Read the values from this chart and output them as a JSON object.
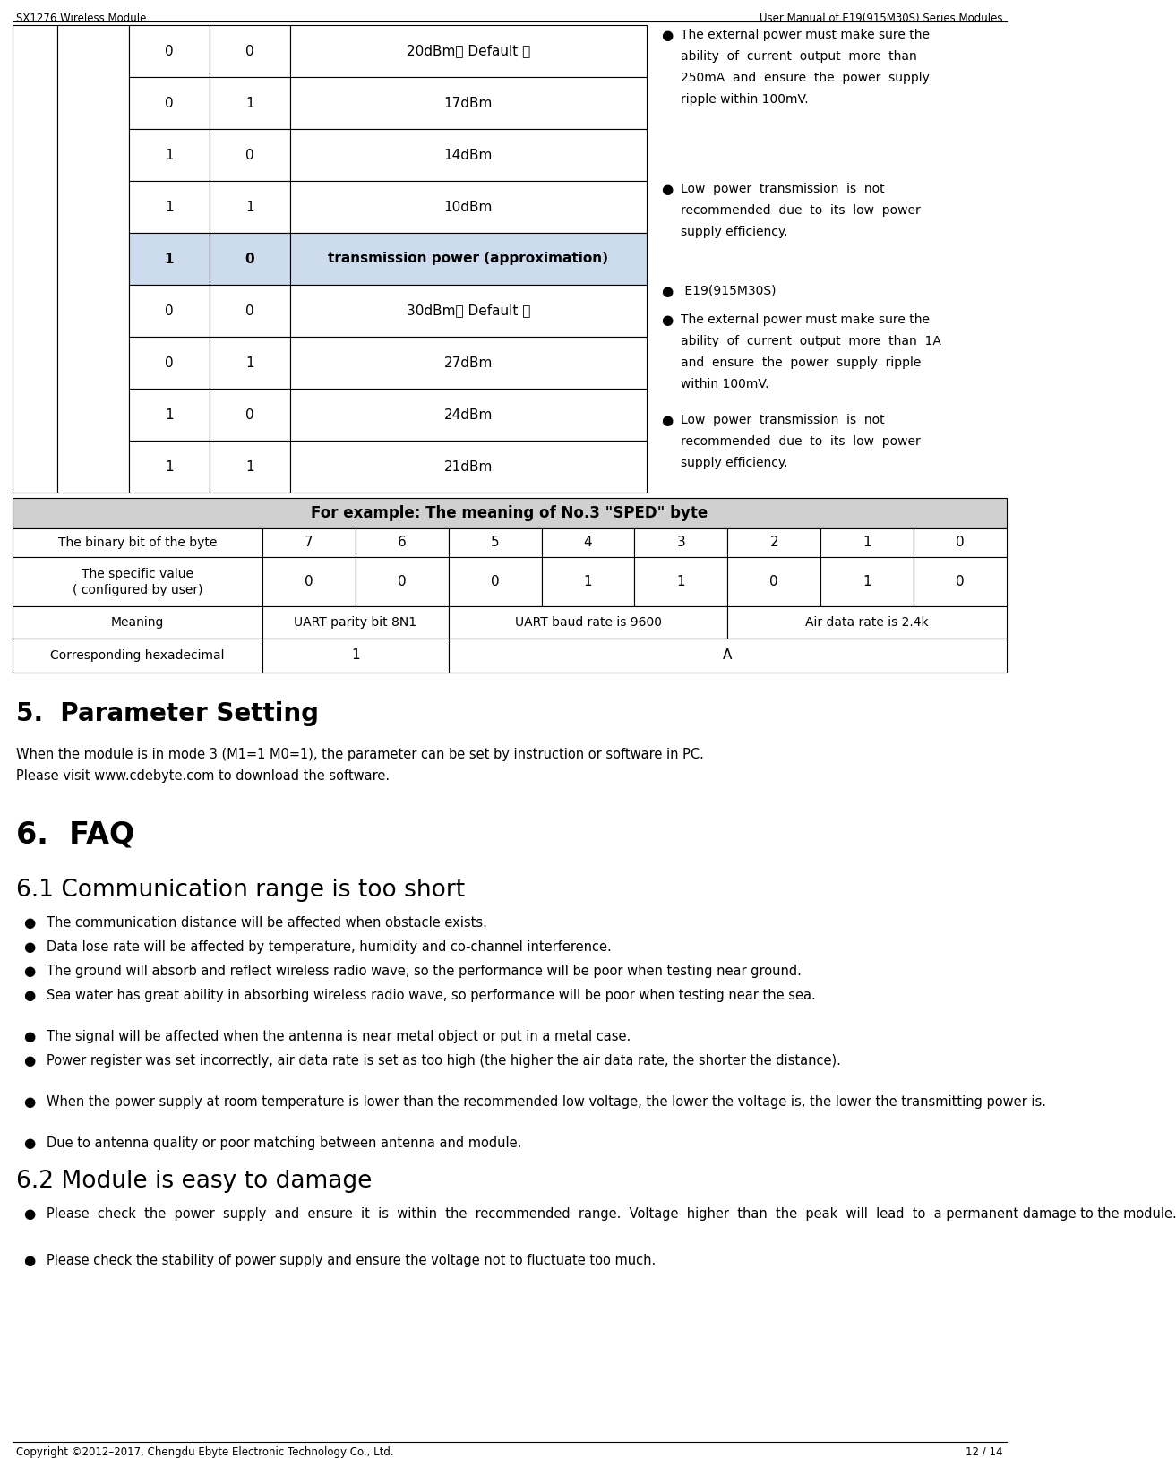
{
  "header_left": "SX1276 Wireless Module",
  "header_right": "User Manual of E19(915M30S) Series Modules",
  "footer_left": "Copyright ©2012–2017, Chengdu Ebyte Electronic Technology Co., Ltd.",
  "footer_right": "12 / 14",
  "bg_color": "#ffffff",
  "highlight_row_bg": "#ccdcee",
  "table_rows": [
    {
      "ca": "0",
      "cb": "0",
      "desc": "20dBm（ Default ）",
      "highlight": false
    },
    {
      "ca": "0",
      "cb": "1",
      "desc": "17dBm",
      "highlight": false
    },
    {
      "ca": "1",
      "cb": "0",
      "desc": "14dBm",
      "highlight": false
    },
    {
      "ca": "1",
      "cb": "1",
      "desc": "10dBm",
      "highlight": false
    },
    {
      "ca": "1",
      "cb": "0",
      "desc": "transmission power (approximation)",
      "highlight": true
    },
    {
      "ca": "0",
      "cb": "0",
      "desc": "30dBm（ Default ）",
      "highlight": false
    },
    {
      "ca": "0",
      "cb": "1",
      "desc": "27dBm",
      "highlight": false
    },
    {
      "ca": "1",
      "cb": "0",
      "desc": "24dBm",
      "highlight": false
    },
    {
      "ca": "1",
      "cb": "1",
      "desc": "21dBm",
      "highlight": false
    }
  ],
  "right_col_items": [
    {
      "type": "bullet",
      "text": "The external power must make sure the\nability  of  current  output  more  than\n250mA  and  ensure  the  power  supply\nripple within 100mV."
    },
    {
      "type": "bullet",
      "text": "Low  power  transmission  is  not\nrecommended  due  to  its  low  power\nsupply efficiency."
    },
    {
      "type": "bullet",
      "text": " E19(915M30S)"
    },
    {
      "type": "bullet",
      "text": "The external power must make sure the\nability  of  current  output  more  than  1A\nand  ensure  the  power  supply  ripple\nwithin 100mV."
    },
    {
      "type": "bullet",
      "text": "Low  power  transmission  is  not\nrecommended  due  to  its  low  power\nsupply efficiency."
    }
  ],
  "sped_title": "For example: The meaning of No.3 \"SPED\" byte",
  "sped_bits": [
    "7",
    "6",
    "5",
    "4",
    "3",
    "2",
    "1",
    "0"
  ],
  "sped_vals": [
    "0",
    "0",
    "0",
    "1",
    "1",
    "0",
    "1",
    "0"
  ],
  "sped_meanings": [
    "Meaning",
    "UART parity bit 8N1",
    "UART baud rate is 9600",
    "Air data rate is 2.4k"
  ],
  "sped_hex_label": "Corresponding hexadecimal",
  "sped_hex_1": "1",
  "sped_hex_A": "A",
  "section5_title": "5.  Parameter Setting",
  "param_text1": "When the module is in mode 3 (M1=1 M0=1), the parameter can be set by instruction or software in PC.",
  "param_text2": "Please visit www.cdebyte.com to download the software.",
  "section6_title": "6.  FAQ",
  "section61_title": "6.1 Communication range is too short",
  "faq_61_bullets": [
    "The communication distance will be affected when obstacle exists.",
    "Data lose rate will be affected by temperature, humidity and co-channel interference.",
    "The ground will absorb and reflect wireless radio wave, so the performance will be poor when testing near ground.",
    "Sea water has great ability in absorbing wireless radio wave, so performance will be poor when testing near the sea.",
    "The signal will be affected when the antenna is near metal object or put in a metal case.",
    "Power register was set incorrectly, air data rate is set as too high (the higher the air data rate, the shorter the distance).",
    "When the power supply at room temperature is lower than the recommended low voltage, the lower the voltage is, the lower the transmitting power is.",
    "Due to antenna quality or poor matching between antenna and module."
  ],
  "section62_title": "6.2 Module is easy to damage",
  "faq_62_bullets": [
    "Please  check  the  power  supply  and  ensure  it  is  within  the  recommended  range.  Voltage  higher  than  the  peak  will  lead  to  a permanent damage to the module.",
    "Please check the stability of power supply and ensure the voltage not to fluctuate too much."
  ]
}
